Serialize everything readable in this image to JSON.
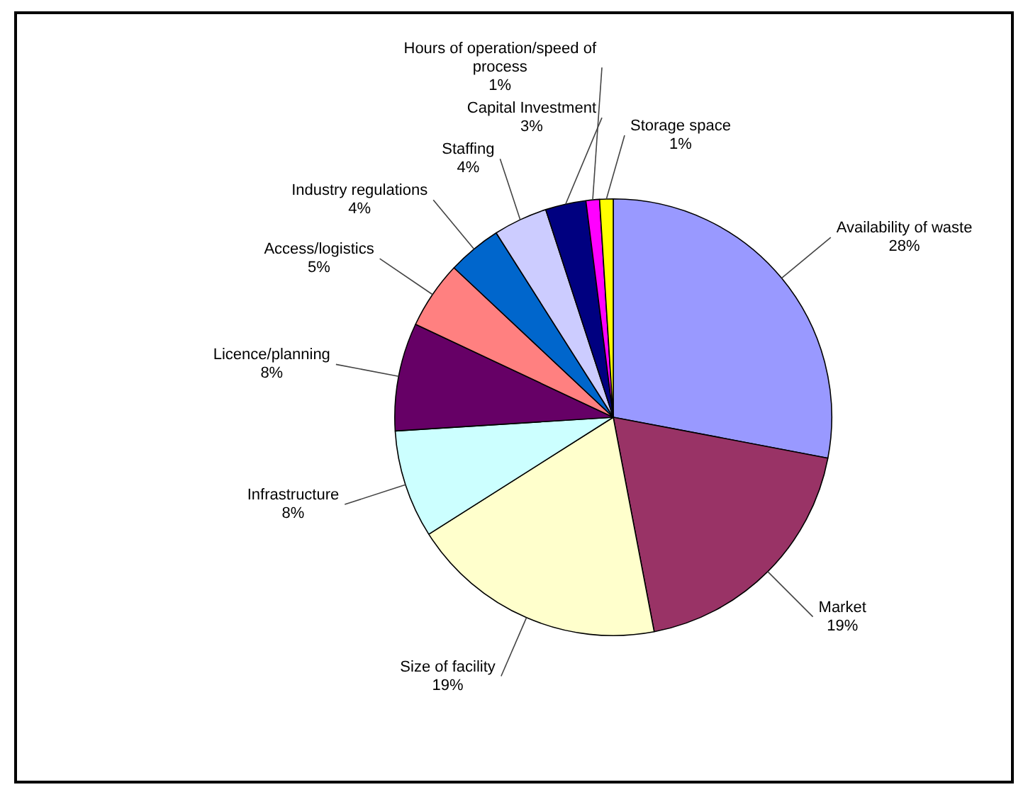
{
  "chart_data": {
    "type": "pie",
    "categories": [
      "Availability of waste",
      "Market",
      "Size of facility",
      "Infrastructure",
      "Licence/planning",
      "Access/logistics",
      "Industry regulations",
      "Staffing",
      "Capital Investment",
      "Hours of operation/speed of process",
      "Storage space"
    ],
    "values": [
      28,
      19,
      19,
      8,
      8,
      5,
      4,
      4,
      3,
      1,
      1
    ],
    "colors": [
      "#9999ff",
      "#993366",
      "#ffffcc",
      "#ccffff",
      "#660066",
      "#ff8080",
      "#0066cc",
      "#ccccff",
      "#000080",
      "#ff00ff",
      "#ffff00"
    ],
    "value_labels": [
      "28%",
      "19%",
      "19%",
      "8%",
      "8%",
      "5%",
      "4%",
      "4%",
      "3%",
      "1%",
      "1%"
    ]
  }
}
